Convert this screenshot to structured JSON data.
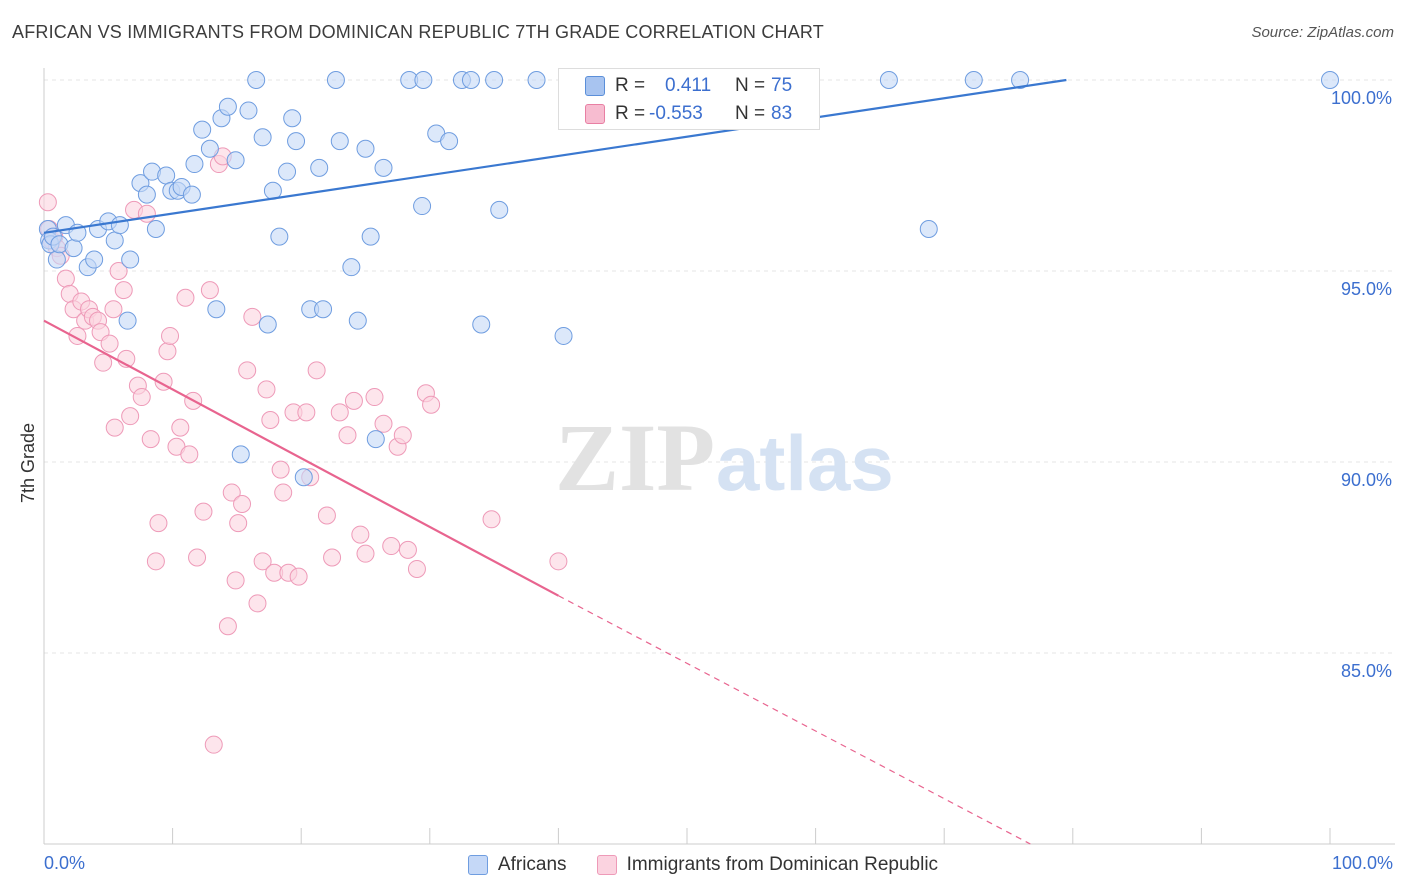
{
  "title": "AFRICAN VS IMMIGRANTS FROM DOMINICAN REPUBLIC 7TH GRADE CORRELATION CHART",
  "source": "Source: ZipAtlas.com",
  "watermark": {
    "zip": "ZIP",
    "atlas": "atlas"
  },
  "stats": {
    "r_label": "R =",
    "n_label": "N =",
    "rows": [
      {
        "r": "0.411",
        "n": "75",
        "fill": "#a8c4f0",
        "stroke": "#5b8fd9"
      },
      {
        "r": "-0.553",
        "n": "83",
        "fill": "#f7bcd0",
        "stroke": "#e87fa3"
      }
    ]
  },
  "legend": [
    {
      "label": "Africans",
      "fill": "#c5d8f7",
      "stroke": "#6f9de0"
    },
    {
      "label": "Immigrants from Dominican Republic",
      "fill": "#fbd3e0",
      "stroke": "#ee9ab8"
    }
  ],
  "chart_data": {
    "type": "scatter",
    "xlabel": "",
    "ylabel": "7th Grade",
    "xlim": [
      0,
      100
    ],
    "ylim": [
      80,
      100.5
    ],
    "x_tick_labels": [
      "0.0%",
      "100.0%"
    ],
    "y_ticks": [
      100,
      95,
      90,
      85
    ],
    "y_tick_labels": [
      "100.0%",
      "95.0%",
      "90.0%",
      "85.0%"
    ],
    "grid": "horizontal dashed",
    "colors": {
      "blue": "#3a78d0",
      "pink": "#e8648f",
      "tick_text": "#3c6fcf",
      "axis": "#cccccc"
    },
    "series": [
      {
        "name": "Africans",
        "color": "#6f9de0",
        "fill": "#c5d8f7",
        "trend": {
          "x": [
            0,
            79.5
          ],
          "y": [
            96.0,
            100.0
          ],
          "dashed_from": 79.5
        },
        "points": [
          [
            0.3,
            96.1
          ],
          [
            0.4,
            95.8
          ],
          [
            0.5,
            95.7
          ],
          [
            0.7,
            95.9
          ],
          [
            1.0,
            95.3
          ],
          [
            1.2,
            95.7
          ],
          [
            1.7,
            96.2
          ],
          [
            2.3,
            95.6
          ],
          [
            2.6,
            96.0
          ],
          [
            3.4,
            95.1
          ],
          [
            3.9,
            95.3
          ],
          [
            4.2,
            96.1
          ],
          [
            5.0,
            96.3
          ],
          [
            5.5,
            95.8
          ],
          [
            5.9,
            96.2
          ],
          [
            6.5,
            93.7
          ],
          [
            6.7,
            95.3
          ],
          [
            7.5,
            97.3
          ],
          [
            8.0,
            97.0
          ],
          [
            8.4,
            97.6
          ],
          [
            8.7,
            96.1
          ],
          [
            9.5,
            97.5
          ],
          [
            9.9,
            97.1
          ],
          [
            10.4,
            97.1
          ],
          [
            10.7,
            97.2
          ],
          [
            11.5,
            97.0
          ],
          [
            11.7,
            97.8
          ],
          [
            12.3,
            98.7
          ],
          [
            12.9,
            98.2
          ],
          [
            13.4,
            94.0
          ],
          [
            13.8,
            99.0
          ],
          [
            14.3,
            99.3
          ],
          [
            14.9,
            97.9
          ],
          [
            15.3,
            90.2
          ],
          [
            15.9,
            99.2
          ],
          [
            16.5,
            100.0
          ],
          [
            17.0,
            98.5
          ],
          [
            17.4,
            93.6
          ],
          [
            17.8,
            97.1
          ],
          [
            18.3,
            95.9
          ],
          [
            18.9,
            97.6
          ],
          [
            19.3,
            99.0
          ],
          [
            19.6,
            98.4
          ],
          [
            20.2,
            89.6
          ],
          [
            20.7,
            94.0
          ],
          [
            21.4,
            97.7
          ],
          [
            21.7,
            94.0
          ],
          [
            22.7,
            100.0
          ],
          [
            23.0,
            98.4
          ],
          [
            23.9,
            95.1
          ],
          [
            24.4,
            93.7
          ],
          [
            25.0,
            98.2
          ],
          [
            25.4,
            95.9
          ],
          [
            25.8,
            90.6
          ],
          [
            26.4,
            97.7
          ],
          [
            28.4,
            100.0
          ],
          [
            29.4,
            96.7
          ],
          [
            29.5,
            100.0
          ],
          [
            30.5,
            98.6
          ],
          [
            31.5,
            98.4
          ],
          [
            32.5,
            100.0
          ],
          [
            33.2,
            100.0
          ],
          [
            34.0,
            93.6
          ],
          [
            35.0,
            100.0
          ],
          [
            35.4,
            96.6
          ],
          [
            38.3,
            100.0
          ],
          [
            40.4,
            93.3
          ],
          [
            42.5,
            100.0
          ],
          [
            55.0,
            100.0
          ],
          [
            58.8,
            100.0
          ],
          [
            65.7,
            100.0
          ],
          [
            68.8,
            96.1
          ],
          [
            72.3,
            100.0
          ],
          [
            75.9,
            100.0
          ],
          [
            100.0,
            100.0
          ]
        ]
      },
      {
        "name": "Immigrants from Dominican Republic",
        "color": "#ee9ab8",
        "fill": "#fbd3e0",
        "trend": {
          "x": [
            0,
            40.0
          ],
          "y": [
            93.7,
            86.5
          ],
          "dashed_to": 76.7,
          "dashed_to_y": 80
        },
        "points": [
          [
            0.3,
            96.8
          ],
          [
            0.4,
            96.1
          ],
          [
            0.6,
            95.8
          ],
          [
            0.8,
            95.9
          ],
          [
            1.0,
            95.6
          ],
          [
            1.3,
            95.4
          ],
          [
            1.7,
            94.8
          ],
          [
            2.0,
            94.4
          ],
          [
            2.3,
            94.0
          ],
          [
            2.6,
            93.3
          ],
          [
            2.9,
            94.2
          ],
          [
            3.2,
            93.7
          ],
          [
            3.5,
            94.0
          ],
          [
            3.8,
            93.8
          ],
          [
            4.2,
            93.7
          ],
          [
            4.4,
            93.4
          ],
          [
            4.6,
            92.6
          ],
          [
            5.1,
            93.1
          ],
          [
            5.4,
            94.0
          ],
          [
            5.5,
            90.9
          ],
          [
            5.8,
            95.0
          ],
          [
            6.2,
            94.5
          ],
          [
            6.4,
            92.7
          ],
          [
            6.7,
            91.2
          ],
          [
            7.0,
            96.6
          ],
          [
            7.3,
            92.0
          ],
          [
            7.6,
            91.7
          ],
          [
            8.0,
            96.5
          ],
          [
            8.3,
            90.6
          ],
          [
            8.7,
            87.4
          ],
          [
            8.9,
            88.4
          ],
          [
            9.3,
            92.1
          ],
          [
            9.6,
            92.9
          ],
          [
            9.8,
            93.3
          ],
          [
            10.3,
            90.4
          ],
          [
            10.6,
            90.9
          ],
          [
            11.0,
            94.3
          ],
          [
            11.3,
            90.2
          ],
          [
            11.6,
            91.6
          ],
          [
            11.9,
            87.5
          ],
          [
            12.4,
            88.7
          ],
          [
            12.9,
            94.5
          ],
          [
            13.2,
            82.6
          ],
          [
            13.6,
            97.8
          ],
          [
            13.9,
            98.0
          ],
          [
            14.3,
            85.7
          ],
          [
            14.6,
            89.2
          ],
          [
            14.9,
            86.9
          ],
          [
            15.1,
            88.4
          ],
          [
            15.4,
            88.9
          ],
          [
            15.8,
            92.4
          ],
          [
            16.2,
            93.8
          ],
          [
            16.6,
            86.3
          ],
          [
            17.0,
            87.4
          ],
          [
            17.3,
            91.9
          ],
          [
            17.6,
            91.1
          ],
          [
            17.9,
            87.1
          ],
          [
            18.4,
            89.8
          ],
          [
            18.6,
            89.2
          ],
          [
            19.0,
            87.1
          ],
          [
            19.4,
            91.3
          ],
          [
            19.8,
            87.0
          ],
          [
            20.4,
            91.3
          ],
          [
            20.7,
            89.6
          ],
          [
            21.2,
            92.4
          ],
          [
            22.0,
            88.6
          ],
          [
            22.4,
            87.5
          ],
          [
            23.0,
            91.3
          ],
          [
            23.6,
            90.7
          ],
          [
            24.1,
            91.6
          ],
          [
            24.6,
            88.1
          ],
          [
            25.0,
            87.6
          ],
          [
            25.7,
            91.7
          ],
          [
            26.4,
            91.0
          ],
          [
            27.0,
            87.8
          ],
          [
            27.5,
            90.4
          ],
          [
            27.9,
            90.7
          ],
          [
            28.3,
            87.7
          ],
          [
            29.0,
            87.2
          ],
          [
            29.7,
            91.8
          ],
          [
            30.1,
            91.5
          ],
          [
            34.8,
            88.5
          ],
          [
            40.0,
            87.4
          ]
        ]
      }
    ]
  }
}
